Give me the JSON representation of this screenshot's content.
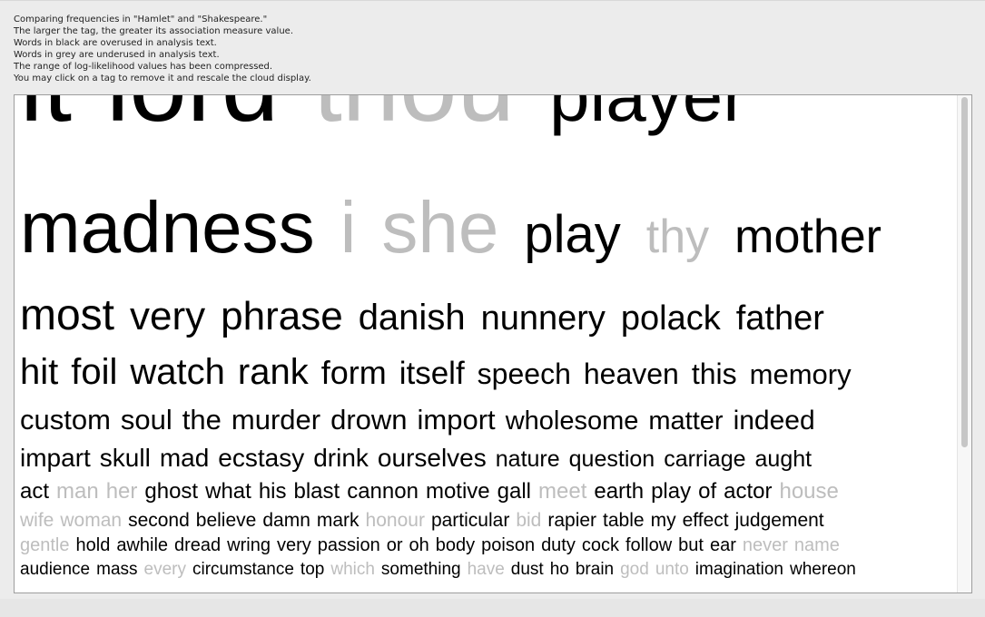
{
  "info_lines": [
    "Comparing frequencies in \"Hamlet\" and \"Shakespeare.\"",
    "The larger the tag, the greater its association measure value.",
    "Words in black are overused in analysis text.",
    "Words in grey are underused in analysis text.",
    "The range of log-likelihood values has been compressed.",
    "You may click on a tag to remove it and rescale the cloud display."
  ],
  "colors": {
    "overused": "#000000",
    "underused": "#bdbdbd"
  },
  "cloud": {
    "rows": [
      [
        [
          "it",
          "o"
        ],
        [
          "lord",
          "o"
        ],
        [
          "thou",
          "u"
        ],
        [
          "player",
          "o"
        ]
      ],
      [
        [
          "madness",
          "o"
        ],
        [
          "i",
          "u"
        ],
        [
          "she",
          "u"
        ],
        [
          "play",
          "o"
        ],
        [
          "thy",
          "u"
        ],
        [
          "mother",
          "o"
        ]
      ],
      [
        [
          "most",
          "o"
        ],
        [
          "very",
          "o"
        ],
        [
          "phrase",
          "o"
        ],
        [
          "danish",
          "o"
        ],
        [
          "nunnery",
          "o"
        ],
        [
          "polack",
          "o"
        ],
        [
          "father",
          "o"
        ]
      ],
      [
        [
          "hit",
          "o"
        ],
        [
          "foil",
          "o"
        ],
        [
          "watch",
          "o"
        ],
        [
          "rank",
          "o"
        ],
        [
          "form",
          "o"
        ],
        [
          "itself",
          "o"
        ],
        [
          "speech",
          "o"
        ],
        [
          "heaven",
          "o"
        ],
        [
          "this",
          "o"
        ],
        [
          "memory",
          "o"
        ]
      ],
      [
        [
          "custom",
          "o"
        ],
        [
          "soul",
          "o"
        ],
        [
          "the",
          "o"
        ],
        [
          "murder",
          "o"
        ],
        [
          "drown",
          "o"
        ],
        [
          "import",
          "o"
        ],
        [
          "wholesome",
          "o"
        ],
        [
          "matter",
          "o"
        ],
        [
          "indeed",
          "o"
        ]
      ],
      [
        [
          "impart",
          "o"
        ],
        [
          "skull",
          "o"
        ],
        [
          "mad",
          "o"
        ],
        [
          "ecstasy",
          "o"
        ],
        [
          "drink",
          "o"
        ],
        [
          "ourselves",
          "o"
        ],
        [
          "nature",
          "o"
        ],
        [
          "question",
          "o"
        ],
        [
          "carriage",
          "o"
        ],
        [
          "aught",
          "o"
        ]
      ],
      [
        [
          "act",
          "o"
        ],
        [
          "man",
          "u"
        ],
        [
          "her",
          "u"
        ],
        [
          "ghost",
          "o"
        ],
        [
          "what",
          "o"
        ],
        [
          "his",
          "o"
        ],
        [
          "blast",
          "o"
        ],
        [
          "cannon",
          "o"
        ],
        [
          "motive",
          "o"
        ],
        [
          "gall",
          "o"
        ],
        [
          "meet",
          "u"
        ],
        [
          "earth",
          "o"
        ],
        [
          "play",
          "o"
        ],
        [
          "of",
          "o"
        ],
        [
          "actor",
          "o"
        ],
        [
          "house",
          "u"
        ]
      ],
      [
        [
          "wife",
          "u"
        ],
        [
          "woman",
          "u"
        ],
        [
          "second",
          "o"
        ],
        [
          "believe",
          "o"
        ],
        [
          "damn",
          "o"
        ],
        [
          "mark",
          "o"
        ],
        [
          "honour",
          "u"
        ],
        [
          "particular",
          "o"
        ],
        [
          "bid",
          "u"
        ],
        [
          "rapier",
          "o"
        ],
        [
          "table",
          "o"
        ],
        [
          "my",
          "o"
        ],
        [
          "effect",
          "o"
        ],
        [
          "judgement",
          "o"
        ]
      ],
      [
        [
          "gentle",
          "u"
        ],
        [
          "hold",
          "o"
        ],
        [
          "awhile",
          "o"
        ],
        [
          "dread",
          "o"
        ],
        [
          "wring",
          "o"
        ],
        [
          "very",
          "o"
        ],
        [
          "passion",
          "o"
        ],
        [
          "or",
          "o"
        ],
        [
          "oh",
          "o"
        ],
        [
          "body",
          "o"
        ],
        [
          "poison",
          "o"
        ],
        [
          "duty",
          "o"
        ],
        [
          "cock",
          "o"
        ],
        [
          "follow",
          "o"
        ],
        [
          "but",
          "o"
        ],
        [
          "ear",
          "o"
        ],
        [
          "never",
          "u"
        ],
        [
          "name",
          "u"
        ]
      ],
      [
        [
          "audience",
          "o"
        ],
        [
          "mass",
          "o"
        ],
        [
          "every",
          "u"
        ],
        [
          "circumstance",
          "o"
        ],
        [
          "top",
          "o"
        ],
        [
          "which",
          "u"
        ],
        [
          "something",
          "o"
        ],
        [
          "have",
          "u"
        ],
        [
          "dust",
          "o"
        ],
        [
          "ho",
          "o"
        ],
        [
          "brain",
          "o"
        ],
        [
          "god",
          "u"
        ],
        [
          "unto",
          "u"
        ],
        [
          "imagination",
          "o"
        ],
        [
          "whereon",
          "o"
        ]
      ]
    ]
  }
}
